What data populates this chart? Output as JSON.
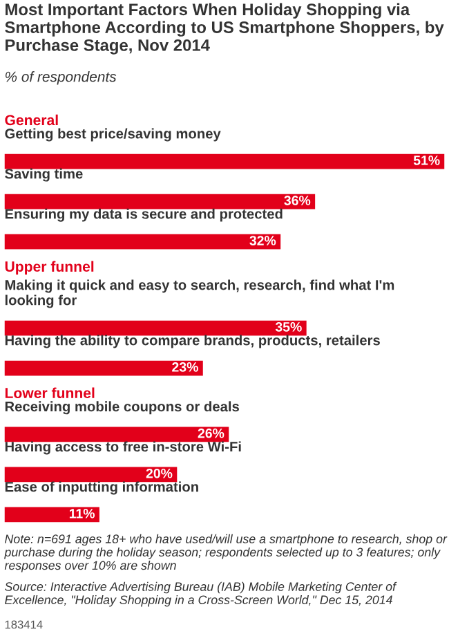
{
  "chart_data": {
    "type": "bar",
    "orientation": "horizontal",
    "title": "Most Important Factors When Holiday Shopping via Smartphone According to US Smartphone Shoppers, by Purchase Stage, Nov 2014",
    "subtitle": "% of respondents",
    "categories": [
      "Getting best price/saving money",
      "Saving time",
      "Ensuring my data is secure and protected",
      "Making it quick and easy to search, research, find what I'm looking for",
      "Having the ability to compare brands, products, retailers",
      "Receiving mobile coupons or deals",
      "Having access to free in-store Wi-Fi",
      "Ease of inputting information"
    ],
    "values": [
      51,
      36,
      32,
      35,
      23,
      26,
      20,
      11
    ],
    "value_labels": [
      "51%",
      "36%",
      "32%",
      "35%",
      "23%",
      "26%",
      "20%",
      "11%"
    ],
    "color": "#e2001a",
    "annotations": [
      "General",
      "Upper funnel",
      "Lower funnel",
      "Note: n=691 ages 18+ who have used/will use a smartphone to research, shop or purchase during the holiday season; respondents selected up to 3 features; only responses over 10% are shown",
      "Source: Interactive Advertising Bureau (IAB) Mobile Marketing Center of Excellence, \"Holiday Shopping in a Cross-Screen World,\" Dec 15, 2014",
      "183414"
    ]
  }
}
